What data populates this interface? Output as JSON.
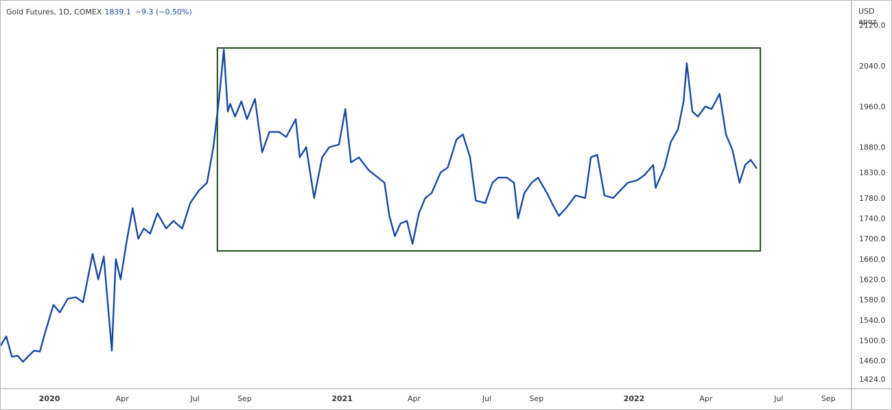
{
  "legend": {
    "symbol": "Gold Futures, 1D, COMEX",
    "last": "1839.1",
    "change": "−9.3 (−0.50%)"
  },
  "colors": {
    "line": "#1848a0",
    "box": "#1e4d1e",
    "axis": "#9a9a9a"
  },
  "chart_data": {
    "type": "line",
    "title": "",
    "xlabel": "",
    "ylabel": "",
    "y_unit_labels": [
      "USD",
      "apoz"
    ],
    "ylim": [
      1405,
      2168
    ],
    "xlim": [
      "2019-11-01",
      "2022-09-30"
    ],
    "y_ticks": [
      "2120.0",
      "2040.0",
      "1960.0",
      "1880.0",
      "1830.0",
      "1780.0",
      "1740.0",
      "1700.0",
      "1660.0",
      "1620.0",
      "1580.0",
      "1540.0",
      "1500.0",
      "1460.0",
      "1424.0"
    ],
    "x_ticks": [
      {
        "date": "2020-01-01",
        "label": "2020",
        "bold": true
      },
      {
        "date": "2020-04-01",
        "label": "Apr",
        "bold": false
      },
      {
        "date": "2020-07-01",
        "label": "Jul",
        "bold": false
      },
      {
        "date": "2020-09-01",
        "label": "Sep",
        "bold": false
      },
      {
        "date": "2021-01-01",
        "label": "2021",
        "bold": true
      },
      {
        "date": "2021-04-01",
        "label": "Apr",
        "bold": false
      },
      {
        "date": "2021-07-01",
        "label": "Jul",
        "bold": false
      },
      {
        "date": "2021-09-01",
        "label": "Sep",
        "bold": false
      },
      {
        "date": "2022-01-01",
        "label": "2022",
        "bold": true
      },
      {
        "date": "2022-04-01",
        "label": "Apr",
        "bold": false
      },
      {
        "date": "2022-07-01",
        "label": "Jul",
        "bold": false
      },
      {
        "date": "2022-09-01",
        "label": "Sep",
        "bold": false
      }
    ],
    "series": [
      {
        "x": [
          "2019-11-01",
          "2019-11-08",
          "2019-11-15",
          "2019-11-22",
          "2019-11-29",
          "2019-12-06",
          "2019-12-13",
          "2019-12-20",
          "2019-12-27",
          "2020-01-06",
          "2020-01-14",
          "2020-01-24",
          "2020-02-03",
          "2020-02-12",
          "2020-02-24",
          "2020-03-02",
          "2020-03-09",
          "2020-03-13",
          "2020-03-19",
          "2020-03-24",
          "2020-03-30",
          "2020-04-06",
          "2020-04-14",
          "2020-04-21",
          "2020-04-28",
          "2020-05-06",
          "2020-05-15",
          "2020-05-26",
          "2020-06-04",
          "2020-06-15",
          "2020-06-25",
          "2020-07-06",
          "2020-07-16",
          "2020-07-24",
          "2020-07-31",
          "2020-08-06",
          "2020-08-11",
          "2020-08-14",
          "2020-08-20",
          "2020-08-28",
          "2020-09-04",
          "2020-09-14",
          "2020-09-23",
          "2020-10-02",
          "2020-10-14",
          "2020-10-23",
          "2020-11-04",
          "2020-11-09",
          "2020-11-17",
          "2020-11-27",
          "2020-12-07",
          "2020-12-16",
          "2020-12-28",
          "2021-01-05",
          "2021-01-12",
          "2021-01-22",
          "2021-02-03",
          "2021-02-11",
          "2021-02-23",
          "2021-03-01",
          "2021-03-08",
          "2021-03-15",
          "2021-03-23",
          "2021-03-30",
          "2021-04-07",
          "2021-04-15",
          "2021-04-23",
          "2021-05-04",
          "2021-05-13",
          "2021-05-24",
          "2021-06-01",
          "2021-06-10",
          "2021-06-17",
          "2021-06-29",
          "2021-07-08",
          "2021-07-15",
          "2021-07-26",
          "2021-08-04",
          "2021-08-09",
          "2021-08-17",
          "2021-08-26",
          "2021-09-03",
          "2021-09-14",
          "2021-09-22",
          "2021-09-29",
          "2021-10-08",
          "2021-10-20",
          "2021-11-01",
          "2021-11-08",
          "2021-11-16",
          "2021-11-25",
          "2021-12-06",
          "2021-12-15",
          "2021-12-24",
          "2022-01-05",
          "2022-01-14",
          "2022-01-25",
          "2022-01-28",
          "2022-02-08",
          "2022-02-16",
          "2022-02-25",
          "2022-03-04",
          "2022-03-08",
          "2022-03-15",
          "2022-03-22",
          "2022-03-31",
          "2022-04-08",
          "2022-04-18",
          "2022-04-26",
          "2022-05-04",
          "2022-05-13",
          "2022-05-20",
          "2022-05-27",
          "2022-06-03"
        ],
        "y": [
          1490,
          1508,
          1468,
          1470,
          1458,
          1470,
          1480,
          1478,
          1518,
          1570,
          1555,
          1582,
          1585,
          1575,
          1670,
          1620,
          1665,
          1590,
          1480,
          1660,
          1620,
          1690,
          1760,
          1700,
          1720,
          1710,
          1750,
          1720,
          1735,
          1720,
          1770,
          1795,
          1810,
          1880,
          1975,
          2072,
          1950,
          1965,
          1940,
          1970,
          1935,
          1975,
          1870,
          1910,
          1910,
          1900,
          1935,
          1860,
          1880,
          1780,
          1860,
          1880,
          1885,
          1955,
          1850,
          1860,
          1835,
          1825,
          1810,
          1745,
          1705,
          1730,
          1735,
          1690,
          1750,
          1780,
          1790,
          1830,
          1840,
          1895,
          1905,
          1860,
          1775,
          1770,
          1810,
          1820,
          1820,
          1810,
          1740,
          1790,
          1810,
          1820,
          1790,
          1765,
          1745,
          1760,
          1785,
          1780,
          1860,
          1865,
          1785,
          1780,
          1795,
          1810,
          1815,
          1825,
          1845,
          1800,
          1840,
          1890,
          1915,
          1970,
          2045,
          1950,
          1940,
          1960,
          1955,
          1985,
          1905,
          1875,
          1810,
          1845,
          1855,
          1839.1
        ]
      }
    ],
    "annotations": [
      {
        "type": "rectangle",
        "x0": "2020-07-29",
        "x1": "2022-06-08",
        "y0": 1676,
        "y1": 2075
      }
    ]
  }
}
